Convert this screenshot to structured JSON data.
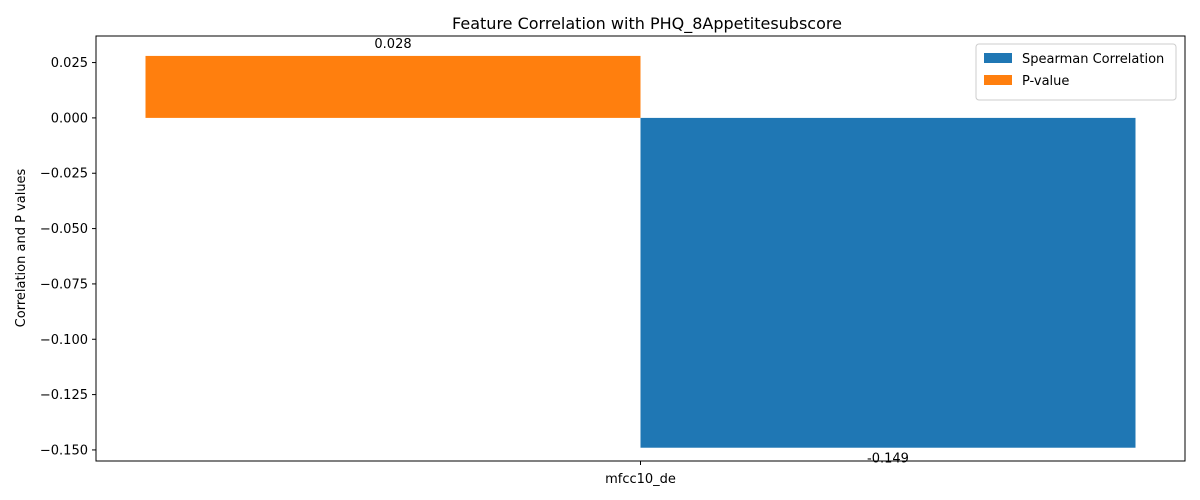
{
  "chart_data": {
    "type": "bar",
    "title": "Feature Correlation with PHQ_8Appetitesubscore",
    "xlabel": "",
    "ylabel": "Correlation and P values",
    "categories": [
      "mfcc10_de"
    ],
    "series": [
      {
        "name": "Spearman Correlation",
        "values": [
          -0.149
        ],
        "color": "#1f77b4",
        "label_text": "-0.149"
      },
      {
        "name": "P-value",
        "values": [
          0.028
        ],
        "color": "#ff7f0e",
        "label_text": "0.028"
      }
    ],
    "ylim": [
      -0.155,
      0.037
    ],
    "yticks": [
      {
        "value": 0.025,
        "label": "0.025"
      },
      {
        "value": 0.0,
        "label": "0.000"
      },
      {
        "value": -0.025,
        "label": "−0.025"
      },
      {
        "value": -0.05,
        "label": "−0.050"
      },
      {
        "value": -0.075,
        "label": "−0.075"
      },
      {
        "value": -0.1,
        "label": "−0.100"
      },
      {
        "value": -0.125,
        "label": "−0.125"
      },
      {
        "value": -0.15,
        "label": "−0.150"
      }
    ],
    "grid": false,
    "legend_position": "top-right"
  }
}
